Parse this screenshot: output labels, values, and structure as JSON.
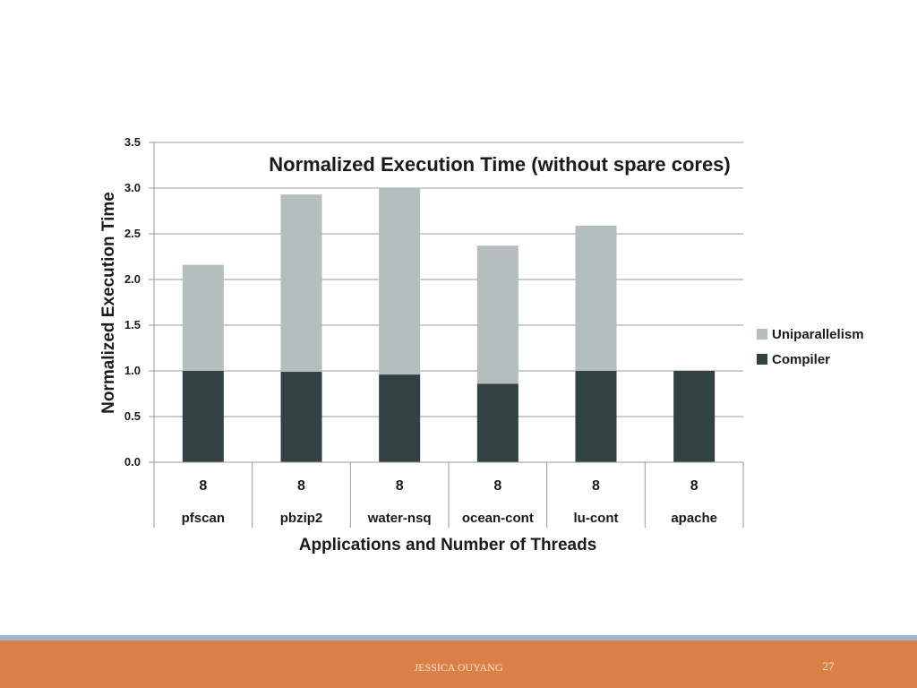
{
  "footer": {
    "author": "JESSICA OUYANG",
    "page_number": "27"
  },
  "colors": {
    "uniparallelism": "#b3bebd",
    "compiler": "#324242",
    "footer": "#db8147",
    "footer_stripe": "#9fb6d2"
  },
  "chart_data": {
    "type": "bar",
    "stacked": true,
    "title": "Normalized Execution Time (without spare cores)",
    "xlabel": "Applications and Number of Threads",
    "ylabel": "Normalized Execution Time",
    "ylim": [
      0,
      3.5
    ],
    "yticks": [
      "0.0",
      "0.5",
      "1.0",
      "1.5",
      "2.0",
      "2.5",
      "3.0",
      "3.5"
    ],
    "grid": true,
    "legend_position": "right",
    "categories": [
      "pfscan",
      "pbzip2",
      "water-nsq",
      "ocean-cont",
      "lu-cont",
      "apache"
    ],
    "threads": [
      "8",
      "8",
      "8",
      "8",
      "8",
      "8"
    ],
    "series": [
      {
        "name": "Compiler",
        "color": "#324242",
        "values": [
          1.0,
          0.99,
          0.96,
          0.86,
          1.0,
          1.0
        ]
      },
      {
        "name": "Uniparallelism",
        "color": "#b3bebd",
        "values": [
          1.16,
          1.94,
          2.04,
          1.51,
          1.59,
          0.0
        ]
      }
    ],
    "legend_order": [
      "Uniparallelism",
      "Compiler"
    ]
  }
}
